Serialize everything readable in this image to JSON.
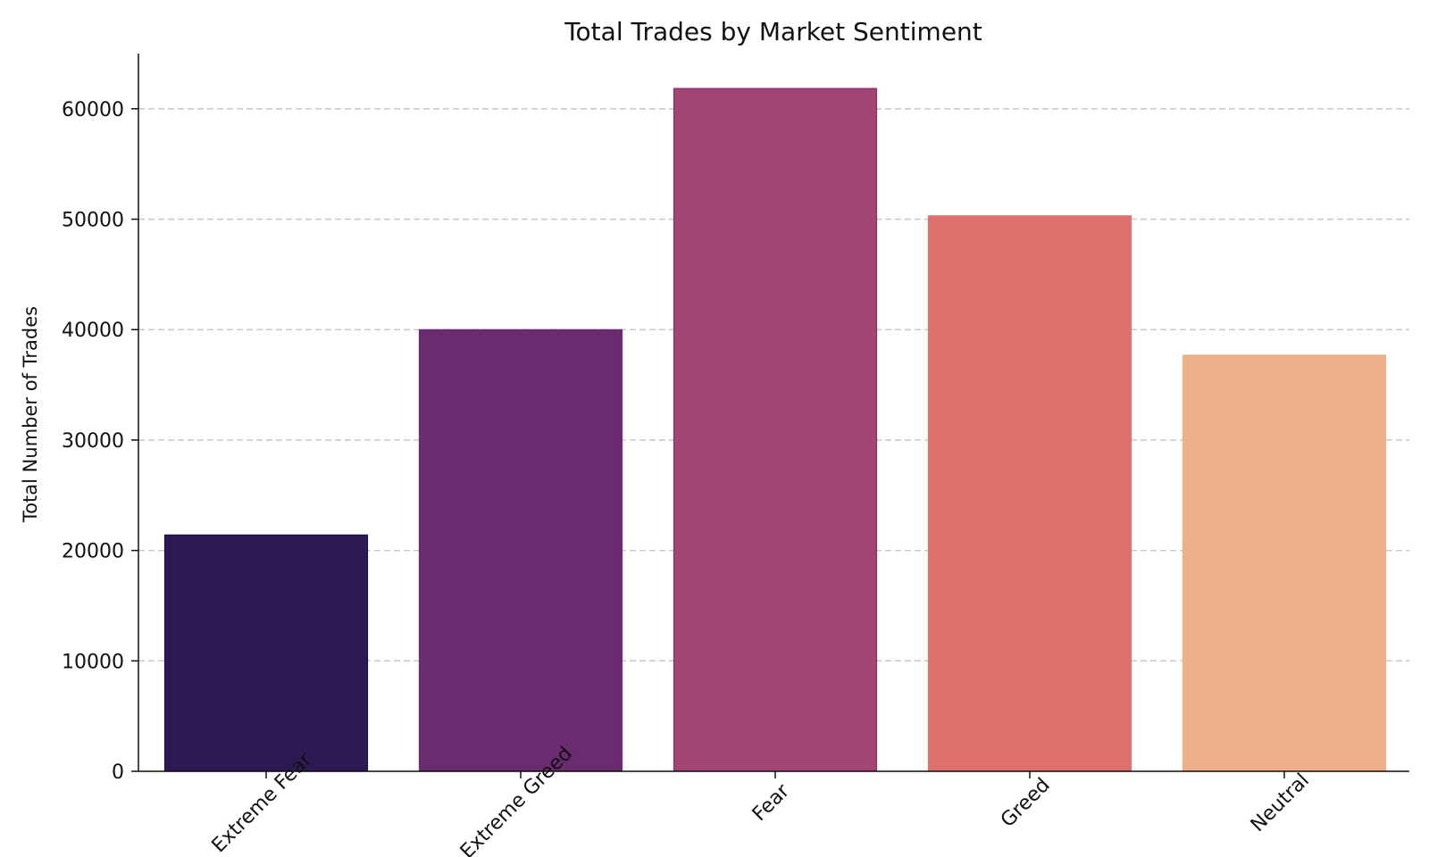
{
  "chart_data": {
    "type": "bar",
    "title": "Total Trades by Market Sentiment",
    "xlabel": "",
    "ylabel": "Total Number of Trades",
    "categories": [
      "Extreme Fear",
      "Extreme Greed",
      "Fear",
      "Greed",
      "Neutral"
    ],
    "values": [
      21400,
      39992,
      61837,
      50303,
      37686
    ],
    "colors": [
      "#2e1a52",
      "#6a2b71",
      "#a34574",
      "#de706e",
      "#edb088"
    ],
    "edge_colors": [
      "#1f0f45",
      "#6a2b71",
      "#8c2e6e",
      "#de706e",
      "#edb088"
    ],
    "ylim": [
      0,
      65000
    ],
    "yticks": [
      0,
      10000,
      20000,
      30000,
      40000,
      50000,
      60000
    ],
    "grid": "y",
    "x_tick_rotation": -45
  }
}
